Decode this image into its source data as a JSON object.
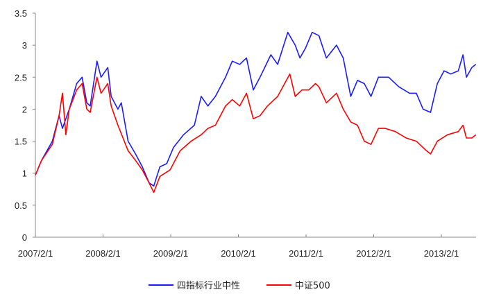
{
  "chart_data": {
    "type": "line",
    "title": "",
    "xlabel": "",
    "ylabel": "",
    "x_unit": "years since 2007/2/1",
    "xlim": [
      0,
      6.51
    ],
    "ylim": [
      0,
      3.5
    ],
    "grid": false,
    "legend_position": "bottom",
    "y_ticks": [
      "0",
      "0.5",
      "1",
      "1.5",
      "2",
      "2.5",
      "3",
      "3.5"
    ],
    "x_ticks": [
      "2007/2/1",
      "2008/2/1",
      "2009/2/1",
      "2010/2/1",
      "2011/2/1",
      "2012/2/1",
      "2013/2/1"
    ],
    "series": [
      {
        "name": "四指标行业中性",
        "color": "#1a1aff",
        "points": [
          [
            0,
            0.97
          ],
          [
            0.09,
            1.2
          ],
          [
            0.25,
            1.5
          ],
          [
            0.35,
            1.9
          ],
          [
            0.4,
            1.7
          ],
          [
            0.5,
            2.0
          ],
          [
            0.61,
            2.4
          ],
          [
            0.69,
            2.5
          ],
          [
            0.76,
            2.1
          ],
          [
            0.81,
            2.05
          ],
          [
            0.91,
            2.75
          ],
          [
            0.97,
            2.5
          ],
          [
            1.07,
            2.65
          ],
          [
            1.12,
            2.2
          ],
          [
            1.22,
            2.0
          ],
          [
            1.27,
            2.1
          ],
          [
            1.37,
            1.5
          ],
          [
            1.48,
            1.3
          ],
          [
            1.58,
            1.1
          ],
          [
            1.68,
            0.85
          ],
          [
            1.75,
            0.8
          ],
          [
            1.84,
            1.1
          ],
          [
            1.94,
            1.15
          ],
          [
            2.04,
            1.4
          ],
          [
            2.19,
            1.6
          ],
          [
            2.35,
            1.75
          ],
          [
            2.45,
            2.2
          ],
          [
            2.55,
            2.05
          ],
          [
            2.66,
            2.2
          ],
          [
            2.81,
            2.5
          ],
          [
            2.91,
            2.75
          ],
          [
            3.02,
            2.7
          ],
          [
            3.12,
            2.8
          ],
          [
            3.22,
            2.3
          ],
          [
            3.32,
            2.5
          ],
          [
            3.48,
            2.85
          ],
          [
            3.58,
            2.7
          ],
          [
            3.73,
            3.2
          ],
          [
            3.84,
            3.0
          ],
          [
            3.91,
            2.8
          ],
          [
            3.99,
            2.95
          ],
          [
            4.09,
            3.2
          ],
          [
            4.19,
            3.15
          ],
          [
            4.3,
            2.8
          ],
          [
            4.45,
            3.0
          ],
          [
            4.55,
            2.8
          ],
          [
            4.66,
            2.2
          ],
          [
            4.76,
            2.45
          ],
          [
            4.86,
            2.4
          ],
          [
            4.96,
            2.2
          ],
          [
            5.07,
            2.5
          ],
          [
            5.22,
            2.5
          ],
          [
            5.37,
            2.35
          ],
          [
            5.53,
            2.25
          ],
          [
            5.63,
            2.25
          ],
          [
            5.73,
            2.0
          ],
          [
            5.84,
            1.95
          ],
          [
            5.94,
            2.4
          ],
          [
            6.04,
            2.6
          ],
          [
            6.14,
            2.55
          ],
          [
            6.25,
            2.6
          ],
          [
            6.32,
            2.85
          ],
          [
            6.37,
            2.5
          ],
          [
            6.45,
            2.65
          ],
          [
            6.51,
            2.7
          ]
        ]
      },
      {
        "name": "中证500",
        "color": "#ff0000",
        "points": [
          [
            0,
            0.97
          ],
          [
            0.09,
            1.2
          ],
          [
            0.25,
            1.45
          ],
          [
            0.35,
            1.9
          ],
          [
            0.4,
            2.25
          ],
          [
            0.45,
            1.6
          ],
          [
            0.5,
            2.0
          ],
          [
            0.61,
            2.3
          ],
          [
            0.69,
            2.4
          ],
          [
            0.76,
            2.0
          ],
          [
            0.81,
            1.95
          ],
          [
            0.91,
            2.5
          ],
          [
            0.97,
            2.25
          ],
          [
            1.07,
            2.4
          ],
          [
            1.12,
            2.05
          ],
          [
            1.22,
            1.75
          ],
          [
            1.37,
            1.35
          ],
          [
            1.48,
            1.2
          ],
          [
            1.58,
            1.05
          ],
          [
            1.68,
            0.85
          ],
          [
            1.75,
            0.7
          ],
          [
            1.84,
            0.95
          ],
          [
            1.99,
            1.05
          ],
          [
            2.14,
            1.35
          ],
          [
            2.3,
            1.5
          ],
          [
            2.45,
            1.6
          ],
          [
            2.55,
            1.7
          ],
          [
            2.66,
            1.75
          ],
          [
            2.81,
            2.05
          ],
          [
            2.91,
            2.15
          ],
          [
            3.02,
            2.05
          ],
          [
            3.12,
            2.25
          ],
          [
            3.22,
            1.85
          ],
          [
            3.32,
            1.9
          ],
          [
            3.43,
            2.05
          ],
          [
            3.58,
            2.2
          ],
          [
            3.76,
            2.55
          ],
          [
            3.84,
            2.2
          ],
          [
            3.94,
            2.3
          ],
          [
            4.04,
            2.3
          ],
          [
            4.14,
            2.4
          ],
          [
            4.19,
            2.35
          ],
          [
            4.3,
            2.1
          ],
          [
            4.45,
            2.25
          ],
          [
            4.55,
            2.0
          ],
          [
            4.66,
            1.8
          ],
          [
            4.76,
            1.75
          ],
          [
            4.86,
            1.5
          ],
          [
            4.96,
            1.45
          ],
          [
            5.07,
            1.7
          ],
          [
            5.17,
            1.7
          ],
          [
            5.32,
            1.65
          ],
          [
            5.48,
            1.55
          ],
          [
            5.63,
            1.5
          ],
          [
            5.78,
            1.35
          ],
          [
            5.84,
            1.3
          ],
          [
            5.94,
            1.5
          ],
          [
            6.09,
            1.6
          ],
          [
            6.25,
            1.65
          ],
          [
            6.32,
            1.75
          ],
          [
            6.37,
            1.55
          ],
          [
            6.45,
            1.55
          ],
          [
            6.51,
            1.6
          ]
        ]
      }
    ]
  }
}
